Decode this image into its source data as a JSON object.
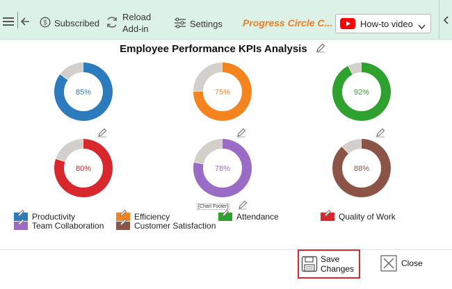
{
  "toolbar": {
    "subscribed_label": "Subscribed",
    "reload_line1": "Reload",
    "reload_line2": "Add-in",
    "settings_label": "Settings",
    "addin_title": "Progress Circle C...",
    "video_label": "How-to video",
    "icons": [
      "hamburger-menu-icon",
      "back-arrow-icon",
      "dollar-circle-icon",
      "refresh-icon",
      "sliders-icon",
      "youtube-icon",
      "chevron-down-icon",
      "chevron-left-icon"
    ]
  },
  "chart_data": {
    "type": "donut",
    "title": "Employee Performance KPIs Analysis",
    "footer_placeholder": "[Chart Footer]",
    "track_color": "#d3d0cb",
    "series": [
      {
        "name": "Productivity",
        "value": 85,
        "label": "85%",
        "color": "#2b7bbd"
      },
      {
        "name": "Efficiency",
        "value": 75,
        "label": "75%",
        "color": "#f5841f"
      },
      {
        "name": "Attendance",
        "value": 92,
        "label": "92%",
        "color": "#2ea12e"
      },
      {
        "name": "Quality of Work",
        "value": 80,
        "label": "80%",
        "color": "#d9272e"
      },
      {
        "name": "Team Collaboration",
        "value": 78,
        "label": "78%",
        "color": "#9b6cc6"
      },
      {
        "name": "Customer Satisfaction",
        "value": 88,
        "label": "88%",
        "color": "#8b5446"
      }
    ]
  },
  "actions": {
    "save_line1": "Save",
    "save_line2": "Changes",
    "close_label": "Close"
  }
}
